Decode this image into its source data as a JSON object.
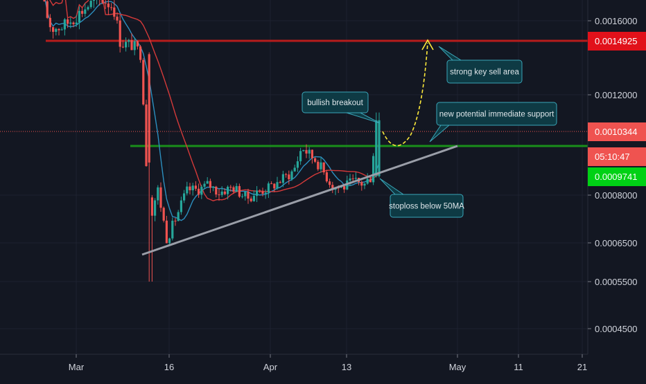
{
  "colors": {
    "background": "#131722",
    "grid": "#1e2230",
    "axis_text": "#d1d4dc",
    "candle_up": "#26a69a",
    "candle_down": "#ef5350",
    "ma_fast": "#2c8fbf",
    "ma_slow": "#d63a3a",
    "sell_line": "#b71c1c",
    "support_line": "#1a8f1a",
    "trend_line": "#9a9ea8",
    "arrow": "#ffeb3b",
    "callout_bg": "#0e3a44",
    "callout_border": "#3aa6b9",
    "callout_text": "#dfe6ea"
  },
  "chart_data": {
    "type": "candlestick",
    "x_ticks": [
      "Mar",
      "16",
      "Apr",
      "13",
      "May",
      "11",
      "21"
    ],
    "y_ticks": [
      "0.0016000",
      "0.0012000",
      "0.0008000",
      "0.0006500",
      "0.0005500",
      "0.0004500"
    ],
    "price_labels": [
      {
        "name": "sell-area",
        "text": "0.0014925",
        "value": 0.0014925,
        "color": "#e1111a"
      },
      {
        "name": "last-price",
        "text": "0.0010344",
        "value": 0.0010344,
        "color": "#ef5350"
      },
      {
        "name": "countdown",
        "text": "05:10:47",
        "value": 0.00099,
        "color": "#ef5350"
      },
      {
        "name": "ma-level",
        "text": "0.0009741",
        "value": 0.0009741,
        "color": "#00d115"
      }
    ],
    "horizontal_lines": [
      {
        "name": "sell-area-line",
        "value": 0.0014925
      },
      {
        "name": "support-line",
        "value": 0.000972
      }
    ],
    "annotations": [
      {
        "name": "bullish-breakout-callout",
        "text": "bullish breakout"
      },
      {
        "name": "new-support-callout",
        "text": "new potential immediate support"
      },
      {
        "name": "strong-sell-callout",
        "text": "strong key sell area"
      },
      {
        "name": "stoploss-callout",
        "text": "stoploss below 50MA"
      }
    ],
    "ma_fast_label": "",
    "ma_slow_label": ""
  }
}
